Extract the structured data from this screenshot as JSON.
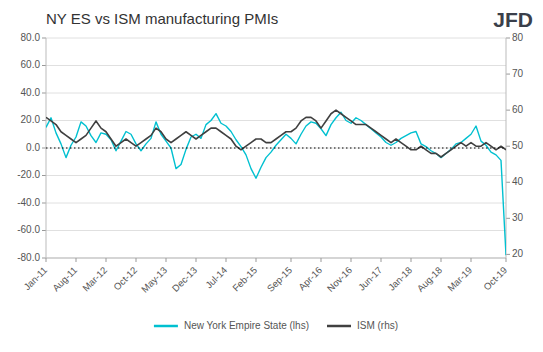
{
  "chart_data": {
    "type": "line",
    "title": "NY ES vs ISM manufacturing PMIs",
    "annotations": [
      "JFD"
    ],
    "categories": [
      "Jan-11",
      null,
      null,
      null,
      null,
      null,
      "Aug-11",
      null,
      null,
      null,
      null,
      null,
      "Mar-12",
      null,
      null,
      null,
      null,
      null,
      "Oct-12",
      null,
      null,
      null,
      null,
      null,
      "May-13",
      null,
      null,
      null,
      null,
      null,
      "Dec-13",
      null,
      null,
      null,
      null,
      null,
      "Jul-14",
      null,
      null,
      null,
      null,
      null,
      "Feb-15",
      null,
      null,
      null,
      null,
      null,
      null,
      "Sep-15",
      null,
      null,
      null,
      null,
      null,
      "Apr-16",
      null,
      null,
      null,
      null,
      null,
      "Nov-16",
      null,
      null,
      null,
      null,
      null,
      "Jun-17",
      null,
      null,
      null,
      null,
      null,
      "Jan-18",
      null,
      null,
      null,
      null,
      null,
      "Aug-18",
      null,
      null,
      null,
      null,
      null,
      "Mar-19",
      null,
      null,
      null,
      null,
      null,
      null,
      "Oct-19"
    ],
    "series": [
      {
        "name": "New York Empire State (lhs)",
        "color": "#00c0d0",
        "values": [
          15,
          22,
          11,
          3,
          -7,
          2,
          8,
          19,
          16,
          9,
          4,
          11,
          10,
          6,
          -2,
          5,
          12,
          10,
          3,
          -2,
          3,
          7,
          19,
          10,
          5,
          0,
          -15,
          -12,
          -1,
          8,
          10,
          7,
          17,
          20,
          25,
          18,
          16,
          12,
          6,
          1,
          -5,
          -15,
          -22,
          -14,
          -7,
          -3,
          2,
          6,
          10,
          7,
          3,
          10,
          16,
          19,
          18,
          14,
          9,
          17,
          22,
          26,
          20,
          18,
          22,
          20,
          17,
          14,
          11,
          8,
          4,
          2,
          4,
          7,
          9,
          11,
          12,
          3,
          1,
          -2,
          -4,
          -7,
          -4,
          -1,
          3,
          4,
          7,
          10,
          16,
          5,
          2,
          -3,
          -5,
          -9,
          -78
        ]
      },
      {
        "name": "ISM (rhs)",
        "color": "#404040",
        "axis": "y2",
        "values": [
          58,
          57,
          56,
          54,
          53,
          52,
          51,
          52,
          53,
          55,
          57,
          55,
          54,
          52,
          50,
          51,
          52,
          51,
          50,
          51,
          52,
          53,
          55,
          54,
          52,
          51,
          52,
          53,
          54,
          53,
          52,
          53,
          54,
          55,
          55,
          54,
          53,
          52,
          50,
          49,
          50,
          51,
          52,
          52,
          51,
          51,
          52,
          53,
          54,
          54,
          55,
          57,
          58,
          58,
          57,
          55,
          57,
          59,
          60,
          59,
          58,
          57,
          56,
          56,
          56,
          55,
          54,
          53,
          52,
          51,
          52,
          51,
          50,
          49,
          49,
          50,
          49,
          48,
          48,
          47,
          48,
          49,
          50,
          51,
          50,
          51,
          50,
          50,
          51,
          50,
          49,
          50,
          49
        ]
      }
    ],
    "ylim": [
      -80,
      80
    ],
    "yticks": [
      {
        "value": -80,
        "label": "-80.0"
      },
      {
        "value": -60,
        "label": "-60.0"
      },
      {
        "value": -40,
        "label": "-40.0"
      },
      {
        "value": -20,
        "label": "-20.0"
      },
      {
        "value": 0,
        "label": "0.0"
      },
      {
        "value": 20,
        "label": "20.0"
      },
      {
        "value": 40,
        "label": "40.0"
      },
      {
        "value": 60,
        "label": "60.0"
      },
      {
        "value": 80,
        "label": "80.0"
      }
    ],
    "y2lim": [
      19,
      80
    ],
    "y2ticks": [
      20,
      30,
      40,
      50,
      60,
      70,
      80
    ],
    "hlines": [
      0
    ],
    "grid": true,
    "legend": "bottom"
  }
}
